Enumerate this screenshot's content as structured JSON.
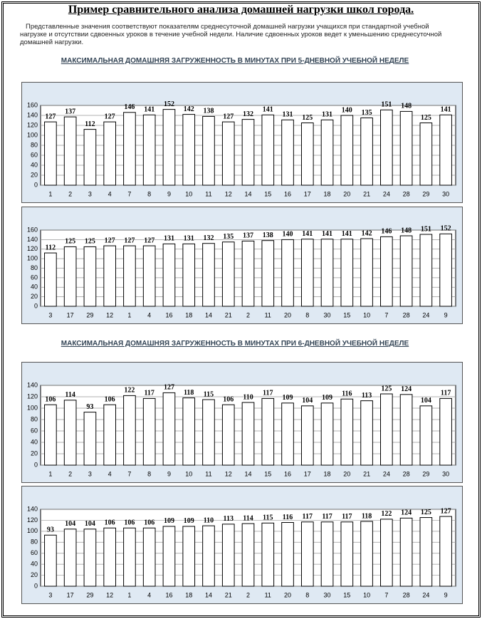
{
  "title": "Пример сравнительного анализа домашней нагрузки школ города.",
  "intro": "Представленные значения соответствуют показателям среднесуточной домашней нагрузки учащихся при стандартной учебной нагрузке и отсутствии  сдвоенных уроков в течение учебной недели. Наличие сдвоенных уроков ведет к уменьшению среднесуточной домашней нагрузки.",
  "section_1": "МАКСИМАЛЬНАЯ ДОМАШНЯЯ ЗАГРУЖЕННОСТЬ В МИНУТАХ  ПРИ 5-ДНЕВНОЙ УЧЕБНОЙ НЕДЕЛЕ",
  "section_2": "МАКСИМАЛЬНАЯ ДОМАШНЯЯ ЗАГРУЖЕННОСТЬ В МИНУТАХ  ПРИ 6-ДНЕВНОЙ УЧЕБНОЙ НЕДЕЛЕ",
  "chart_data": [
    {
      "type": "bar",
      "categories": [
        "1",
        "2",
        "3",
        "4",
        "7",
        "8",
        "9",
        "10",
        "11",
        "12",
        "14",
        "15",
        "16",
        "17",
        "18",
        "20",
        "21",
        "24",
        "28",
        "29",
        "30"
      ],
      "values": [
        127,
        137,
        112,
        127,
        146,
        141,
        152,
        142,
        138,
        127,
        132,
        141,
        131,
        125,
        131,
        140,
        135,
        151,
        148,
        125,
        141
      ],
      "color": "#ffffff",
      "ylim": [
        0,
        160
      ],
      "yticks": [
        0,
        20,
        40,
        60,
        80,
        100,
        120,
        140,
        160
      ],
      "grid": true
    },
    {
      "type": "bar",
      "categories": [
        "3",
        "17",
        "29",
        "12",
        "1",
        "4",
        "16",
        "18",
        "14",
        "21",
        "2",
        "11",
        "20",
        "8",
        "30",
        "15",
        "10",
        "7",
        "28",
        "24",
        "9"
      ],
      "values": [
        112,
        125,
        125,
        127,
        127,
        127,
        131,
        131,
        132,
        135,
        137,
        138,
        140,
        141,
        141,
        141,
        142,
        146,
        148,
        151,
        152
      ],
      "color": "#ffffff",
      "ylim": [
        0,
        160
      ],
      "yticks": [
        0,
        20,
        40,
        60,
        80,
        100,
        120,
        140,
        160
      ],
      "grid": true
    },
    {
      "type": "bar",
      "categories": [
        "1",
        "2",
        "3",
        "4",
        "7",
        "8",
        "9",
        "10",
        "11",
        "12",
        "14",
        "15",
        "16",
        "17",
        "18",
        "20",
        "21",
        "24",
        "28",
        "29",
        "30"
      ],
      "values": [
        106,
        114,
        93,
        106,
        122,
        117,
        127,
        118,
        115,
        106,
        110,
        117,
        109,
        104,
        109,
        116,
        113,
        125,
        124,
        104,
        117
      ],
      "color": "#ffffff",
      "ylim": [
        0,
        140
      ],
      "yticks": [
        0,
        20,
        40,
        60,
        80,
        100,
        120,
        140
      ],
      "grid": true
    },
    {
      "type": "bar",
      "categories": [
        "3",
        "17",
        "29",
        "12",
        "1",
        "4",
        "16",
        "18",
        "14",
        "21",
        "2",
        "11",
        "20",
        "8",
        "30",
        "15",
        "10",
        "7",
        "28",
        "24",
        "9"
      ],
      "values": [
        93,
        104,
        104,
        106,
        106,
        106,
        109,
        109,
        110,
        113,
        114,
        115,
        116,
        117,
        117,
        117,
        118,
        122,
        124,
        125,
        127
      ],
      "color": "#ffffff",
      "ylim": [
        0,
        140
      ],
      "yticks": [
        0,
        20,
        40,
        60,
        80,
        100,
        120,
        140
      ],
      "grid": true
    }
  ]
}
